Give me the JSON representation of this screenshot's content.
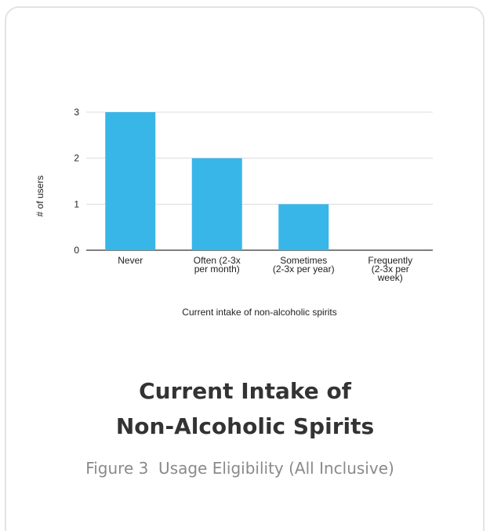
{
  "chart_data": {
    "type": "bar",
    "categories": [
      [
        "Never"
      ],
      [
        "Often (2-3x",
        "per month)"
      ],
      [
        "Sometimes",
        "(2-3x per year)"
      ],
      [
        "Frequently",
        "(2-3x per",
        "week)"
      ]
    ],
    "values": [
      3,
      2,
      1,
      0
    ],
    "xlabel": "Current intake of non-alcoholic spirits",
    "ylabel": "# of users",
    "ylim": [
      0,
      3
    ],
    "yticks": [
      0,
      1,
      2,
      3
    ],
    "grid": true,
    "bar_color": "#38b6e8"
  },
  "caption": {
    "title_line1": "Current Intake of",
    "title_line2": "Non-Alcoholic Spirits",
    "subtitle": "Figure 3  Usage Eligibility (All Inclusive)"
  }
}
